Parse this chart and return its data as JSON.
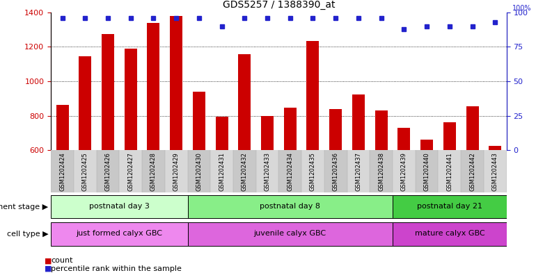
{
  "title": "GDS5257 / 1388390_at",
  "samples": [
    "GSM1202424",
    "GSM1202425",
    "GSM1202426",
    "GSM1202427",
    "GSM1202428",
    "GSM1202429",
    "GSM1202430",
    "GSM1202431",
    "GSM1202432",
    "GSM1202433",
    "GSM1202434",
    "GSM1202435",
    "GSM1202436",
    "GSM1202437",
    "GSM1202438",
    "GSM1202439",
    "GSM1202440",
    "GSM1202441",
    "GSM1202442",
    "GSM1202443"
  ],
  "counts": [
    862,
    1145,
    1272,
    1190,
    1340,
    1380,
    940,
    795,
    1155,
    800,
    848,
    1235,
    840,
    925,
    830,
    730,
    660,
    760,
    855,
    625
  ],
  "percentiles": [
    96,
    96,
    96,
    96,
    96,
    96,
    96,
    90,
    96,
    96,
    96,
    96,
    96,
    96,
    96,
    88,
    90,
    90,
    90,
    93
  ],
  "bar_color": "#cc0000",
  "dot_color": "#2222cc",
  "ylim_left": [
    600,
    1400
  ],
  "ylim_right": [
    0,
    100
  ],
  "yticks_left": [
    600,
    800,
    1000,
    1200,
    1400
  ],
  "yticks_right": [
    0,
    25,
    50,
    75,
    100
  ],
  "grid_lines": [
    800,
    1000,
    1200
  ],
  "development_stage_groups": [
    {
      "label": "postnatal day 3",
      "start": 0,
      "end": 5,
      "color": "#ccffcc"
    },
    {
      "label": "postnatal day 8",
      "start": 6,
      "end": 14,
      "color": "#88ee88"
    },
    {
      "label": "postnatal day 21",
      "start": 15,
      "end": 19,
      "color": "#44cc44"
    }
  ],
  "cell_type_groups": [
    {
      "label": "just formed calyx GBC",
      "start": 0,
      "end": 5,
      "color": "#ee88ee"
    },
    {
      "label": "juvenile calyx GBC",
      "start": 6,
      "end": 14,
      "color": "#dd66dd"
    },
    {
      "label": "mature calyx GBC",
      "start": 15,
      "end": 19,
      "color": "#cc44cc"
    }
  ],
  "dev_stage_label": "development stage",
  "cell_type_label": "cell type",
  "legend_count_label": "count",
  "legend_percentile_label": "percentile rank within the sample",
  "bar_width": 0.55,
  "tick_label_fontsize": 6.0,
  "title_fontsize": 10,
  "annotation_fontsize": 8
}
